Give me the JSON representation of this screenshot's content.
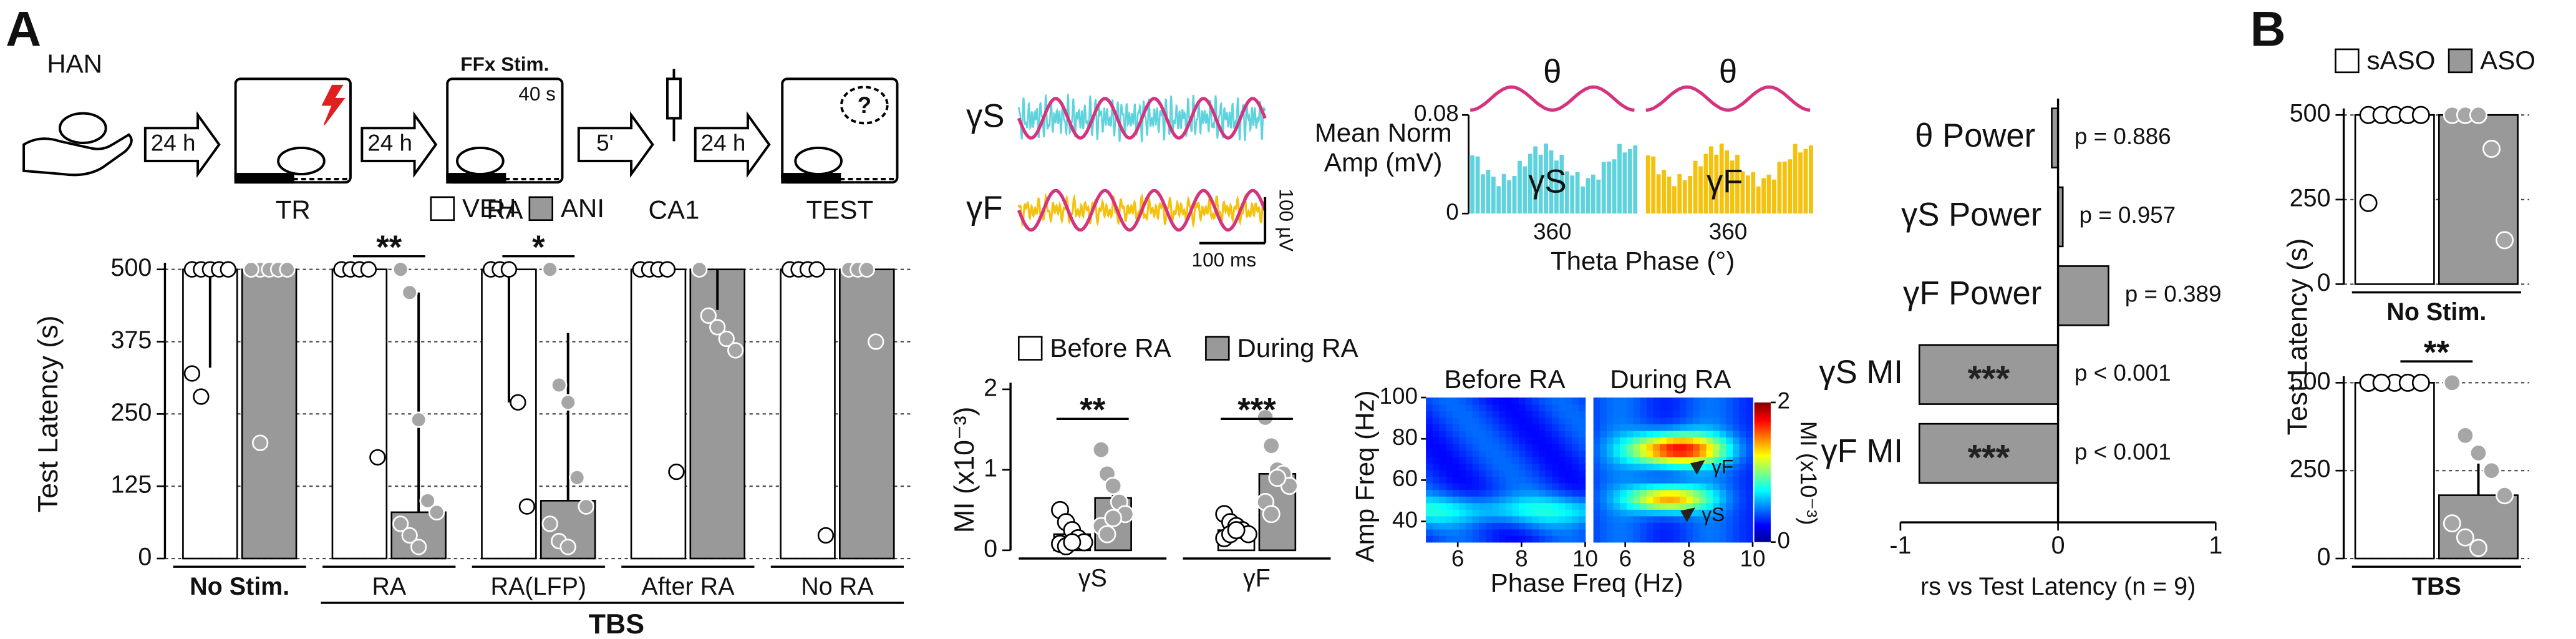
{
  "panel_labels": [
    "A",
    "B"
  ],
  "schematic": {
    "subject": "HAN",
    "intervals": [
      "24 h",
      "24 h",
      "5'",
      "24 h"
    ],
    "stages": [
      "TR",
      "RA",
      "CA1",
      "TEST"
    ],
    "stimulus": "FFx Stim.",
    "stimulus_duration": "40 s",
    "query": "?"
  },
  "waveforms": {
    "traces": [
      "γS",
      "γF"
    ],
    "scale_y": "100 µV",
    "scale_x": "100 ms"
  },
  "phase": {
    "titles": [
      "θ",
      "θ"
    ],
    "bands": [
      "γS",
      "γF"
    ],
    "y_label": [
      "Mean Norm",
      "Amp (mV)"
    ],
    "ylim": [
      0,
      0.08
    ],
    "yticks": [
      0,
      0.08
    ],
    "xtick": 360,
    "x_label": "Theta Phase (°)"
  },
  "heatmap": {
    "titles": [
      "Before RA",
      "During RA"
    ],
    "y_label": "Amp Freq (Hz)",
    "ylim": [
      30,
      100
    ],
    "yticks": [
      40,
      60,
      80,
      100
    ],
    "xlim": [
      5,
      10
    ],
    "xticks": [
      6,
      8,
      10
    ],
    "x_label": "Phase Freq (Hz)",
    "colorbar": {
      "label": "MI (x10⁻³)",
      "ticks": [
        0,
        2
      ]
    },
    "markers": [
      "γF",
      "γS"
    ]
  },
  "chart_data": [
    {
      "type": "bar",
      "y_label": "Test Latency (s)",
      "categories": [
        "No Stim.",
        "RA",
        "RA(LFP)",
        "After RA",
        "No RA"
      ],
      "group_label": "TBS",
      "legend": true,
      "series": [
        {
          "name": "VEH",
          "color": "#ffffff",
          "values": [
            500,
            500,
            500,
            500,
            500
          ],
          "errors": [
            170,
            0,
            230,
            0,
            0
          ],
          "points": [
            [
              500,
              500,
              500,
              500,
              500,
              320,
              280
            ],
            [
              500,
              500,
              500,
              500,
              175
            ],
            [
              500,
              500,
              500,
              270,
              90
            ],
            [
              500,
              500,
              500,
              500,
              150
            ],
            [
              500,
              500,
              500,
              500,
              40
            ]
          ]
        },
        {
          "name": "ANI",
          "color": "#999999",
          "values": [
            500,
            80,
            100,
            500,
            500
          ],
          "errors": [
            0,
            380,
            290,
            70,
            0
          ],
          "points": [
            [
              500,
              500,
              500,
              500,
              500,
              500,
              200
            ],
            [
              500,
              460,
              240,
              100,
              80,
              60,
              40,
              20
            ],
            [
              500,
              300,
              270,
              140,
              90,
              60,
              30,
              20
            ],
            [
              500,
              420,
              400,
              380,
              360
            ],
            [
              500,
              500,
              500,
              375
            ]
          ]
        }
      ],
      "significance": [
        {
          "category": "RA",
          "label": "**"
        },
        {
          "category": "RA(LFP)",
          "label": "*"
        }
      ],
      "ylim": [
        0,
        500
      ],
      "yticks": [
        0,
        125,
        250,
        375,
        500
      ],
      "grid": true
    },
    {
      "type": "bar",
      "y_label": "MI (x10⁻³)",
      "categories": [
        "γS",
        "γF"
      ],
      "legend": true,
      "series": [
        {
          "name": "Before RA",
          "color": "#ffffff",
          "values": [
            0.2,
            0.25
          ],
          "errors": [
            0.06,
            0.05
          ],
          "points": [
            [
              0.5,
              0.35,
              0.25,
              0.15,
              0.1,
              0.08,
              0.05,
              0.1
            ],
            [
              0.45,
              0.35,
              0.3,
              0.25,
              0.2,
              0.15,
              0.2,
              0.25
            ]
          ]
        },
        {
          "name": "During RA",
          "color": "#999999",
          "values": [
            0.65,
            0.95
          ],
          "errors": [
            0.15,
            0.12
          ],
          "points": [
            [
              1.25,
              0.95,
              0.8,
              0.6,
              0.45,
              0.3,
              0.2,
              0.4
            ],
            [
              1.65,
              1.3,
              1.0,
              0.95,
              0.8,
              0.6,
              0.45,
              0.9
            ]
          ]
        }
      ],
      "significance": [
        {
          "category": "γS",
          "label": "**"
        },
        {
          "category": "γF",
          "label": "***"
        }
      ],
      "ylim": [
        0,
        2
      ],
      "yticks": [
        0,
        1,
        2
      ],
      "grid": false
    },
    {
      "type": "hbar",
      "categories": [
        "θ Power",
        "γS Power",
        "γF Power",
        "γS MI",
        "γF MI"
      ],
      "values": [
        -0.04,
        0.03,
        0.32,
        -0.88,
        -0.88
      ],
      "color": "#999999",
      "annotations": [
        "p = 0.886",
        "p = 0.957",
        "p = 0.389",
        "p < 0.001",
        "p < 0.001"
      ],
      "significance": [
        {
          "category": "γS MI",
          "label": "***"
        },
        {
          "category": "γF MI",
          "label": "***"
        }
      ],
      "xlim": [
        -1,
        1
      ],
      "xticks": [
        -1,
        0,
        1
      ],
      "x_label": "rs vs Test Latency (n = 9)"
    },
    {
      "type": "bar",
      "y_label": "Test Latency (s)",
      "categories": [
        "No Stim."
      ],
      "legend": true,
      "series": [
        {
          "name": "sASO",
          "color": "#ffffff",
          "values": [
            500
          ],
          "errors": [
            0
          ],
          "points": [
            [
              500,
              500,
              500,
              500,
              500,
              240
            ]
          ]
        },
        {
          "name": "ASO",
          "color": "#999999",
          "values": [
            500
          ],
          "errors": [
            0
          ],
          "points": [
            [
              500,
              500,
              500,
              400,
              130
            ]
          ]
        }
      ],
      "ylim": [
        0,
        500
      ],
      "yticks": [
        0,
        250,
        500
      ],
      "grid": true
    },
    {
      "type": "bar",
      "categories": [
        "TBS"
      ],
      "legend": false,
      "series": [
        {
          "name": "sASO",
          "color": "#ffffff",
          "values": [
            500
          ],
          "errors": [
            0
          ],
          "points": [
            [
              500,
              500,
              500,
              500,
              500,
              500,
              500
            ]
          ]
        },
        {
          "name": "ASO",
          "color": "#999999",
          "values": [
            180
          ],
          "errors": [
            90
          ],
          "points": [
            [
              500,
              350,
              300,
              250,
              180,
              100,
              60,
              30
            ]
          ]
        }
      ],
      "significance": [
        {
          "category": "TBS",
          "label": "**"
        }
      ],
      "ylim": [
        0,
        500
      ],
      "yticks": [
        0,
        250,
        500
      ],
      "grid": true
    }
  ]
}
